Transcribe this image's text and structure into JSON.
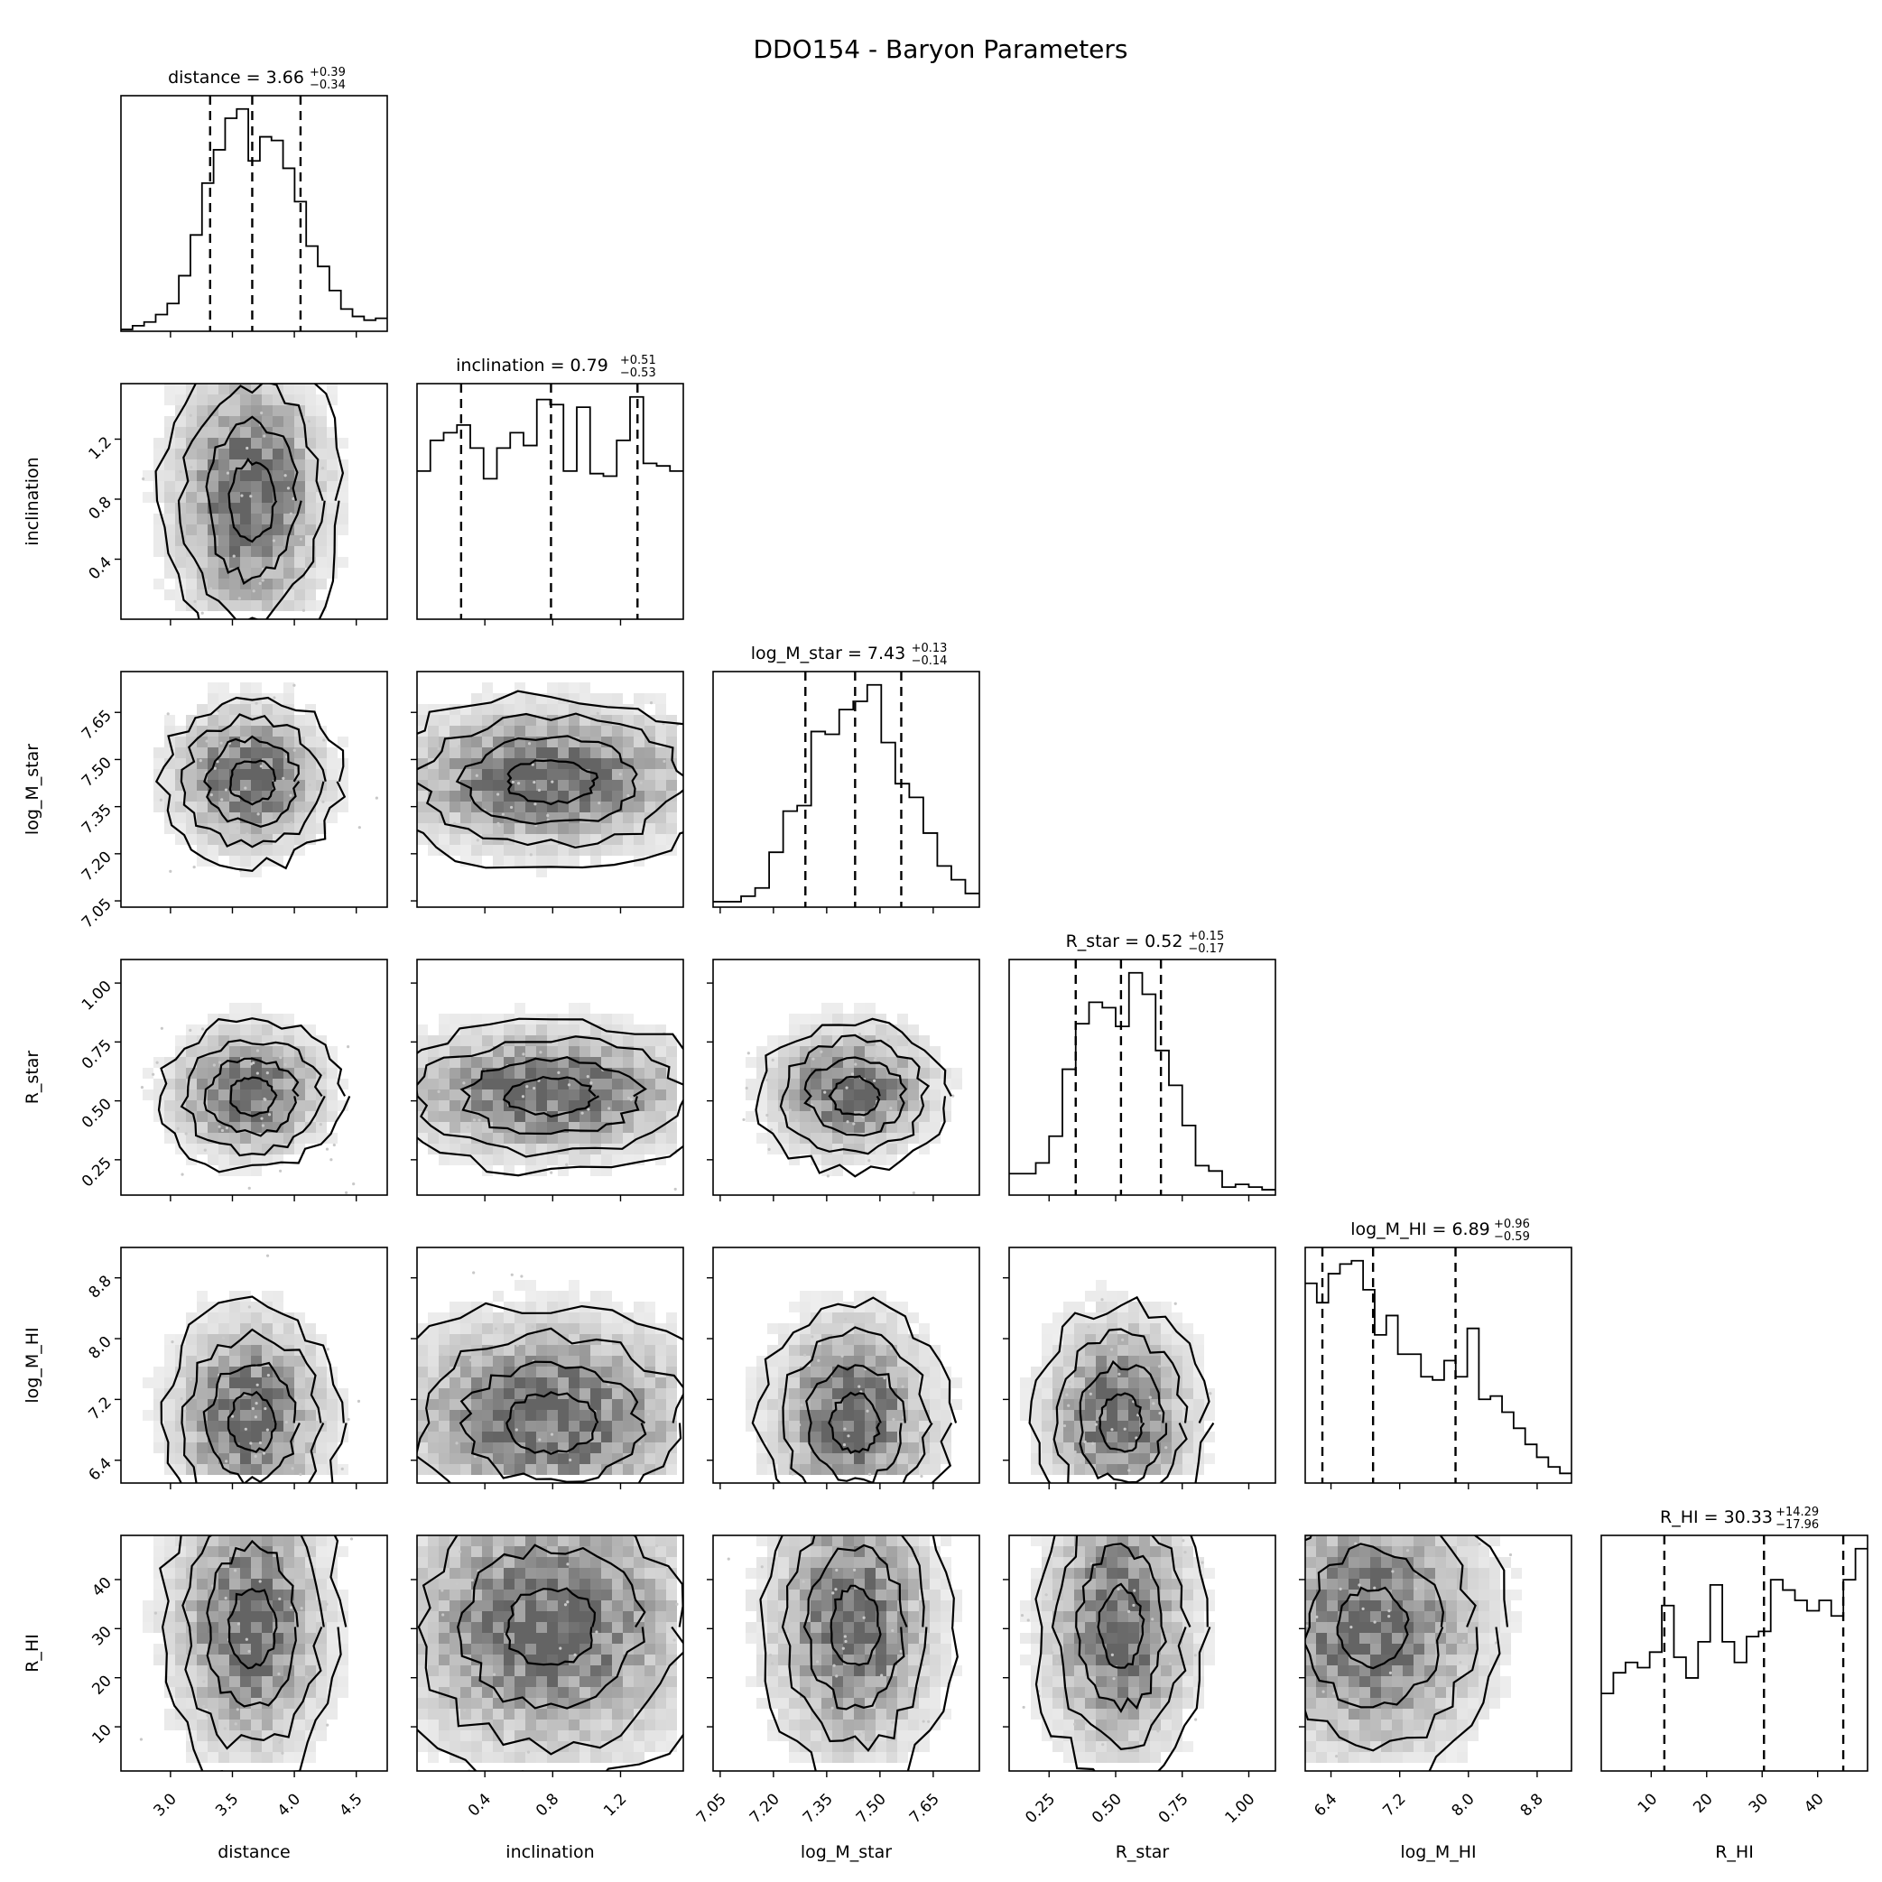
{
  "title": "DDO154 - Baryon Parameters",
  "chart_data": {
    "type": "corner",
    "parameters": [
      {
        "name": "distance",
        "median": "3.66",
        "plus": "+0.39",
        "minus": "−0.34",
        "range": [
          2.6,
          4.75
        ],
        "ticks": [
          3.0,
          3.5,
          4.0,
          4.5
        ],
        "tick_labels": [
          "3.0",
          "3.5",
          "4.0",
          "4.5"
        ],
        "quantiles": [
          3.32,
          3.66,
          4.05
        ],
        "hist": [
          1,
          3,
          5,
          9,
          15,
          30,
          52,
          80,
          98,
          115,
          120,
          92,
          105,
          103,
          88,
          70,
          46,
          35,
          22,
          12,
          8,
          6,
          7
        ]
      },
      {
        "name": "inclination",
        "median": "0.79",
        "plus": "+0.51",
        "minus": "−0.53",
        "range": [
          0.0,
          1.57
        ],
        "ticks": [
          0.4,
          0.8,
          1.2
        ],
        "tick_labels": [
          "0.4",
          "0.8",
          "1.2"
        ],
        "quantiles": [
          0.26,
          0.79,
          1.3
        ],
        "hist": [
          58,
          70,
          73,
          76,
          67,
          55,
          67,
          73,
          68,
          86,
          84,
          58,
          83,
          57,
          56,
          70,
          87,
          61,
          60,
          58
        ]
      },
      {
        "name": "log_M_star",
        "median": "7.43",
        "plus": "+0.13",
        "minus": "−0.14",
        "range": [
          7.03,
          7.78
        ],
        "ticks": [
          7.05,
          7.2,
          7.35,
          7.5,
          7.65
        ],
        "tick_labels": [
          "7.05",
          "7.20",
          "7.35",
          "7.50",
          "7.65"
        ],
        "quantiles": [
          7.29,
          7.43,
          7.56
        ],
        "hist": [
          2,
          2,
          4,
          7,
          20,
          35,
          37,
          64,
          63,
          72,
          75,
          81,
          60,
          45,
          40,
          27,
          15,
          10,
          5
        ]
      },
      {
        "name": "R_star",
        "median": "0.52",
        "plus": "+0.15",
        "minus": "−0.17",
        "range": [
          0.1,
          1.1
        ],
        "ticks": [
          0.25,
          0.5,
          0.75,
          1.0
        ],
        "tick_labels": [
          "0.25",
          "0.50",
          "0.75",
          "1.00"
        ],
        "quantiles": [
          0.35,
          0.52,
          0.67
        ],
        "hist": [
          8,
          8,
          12,
          22,
          47,
          64,
          72,
          70,
          63,
          83,
          75,
          54,
          41,
          26,
          11,
          9,
          3,
          4,
          3,
          2
        ]
      },
      {
        "name": "log_M_HI",
        "median": "6.89",
        "plus": "+0.96",
        "minus": "−0.59",
        "range": [
          6.1,
          9.2
        ],
        "ticks": [
          6.4,
          7.2,
          8.0,
          8.8
        ],
        "tick_labels": [
          "6.4",
          "7.2",
          "8.0",
          "8.8"
        ],
        "quantiles": [
          6.3,
          6.89,
          7.85
        ],
        "hist": [
          62,
          56,
          65,
          68,
          69,
          60,
          46,
          52,
          40,
          40,
          33,
          32,
          38,
          33,
          48,
          26,
          27,
          22,
          17,
          12,
          8,
          5,
          3
        ]
      },
      {
        "name": "R_HI",
        "median": "30.33",
        "plus": "+14.29",
        "minus": "−17.96",
        "range": [
          1.0,
          49.0
        ],
        "ticks": [
          10,
          20,
          30,
          40
        ],
        "tick_labels": [
          "10",
          "20",
          "30",
          "40"
        ],
        "quantiles": [
          12.37,
          30.33,
          44.62
        ],
        "hist": [
          15,
          19,
          21,
          20,
          23,
          32,
          22,
          18,
          25,
          36,
          25,
          21,
          26,
          27,
          37,
          35,
          33,
          31,
          33,
          30,
          37,
          43
        ]
      }
    ]
  }
}
